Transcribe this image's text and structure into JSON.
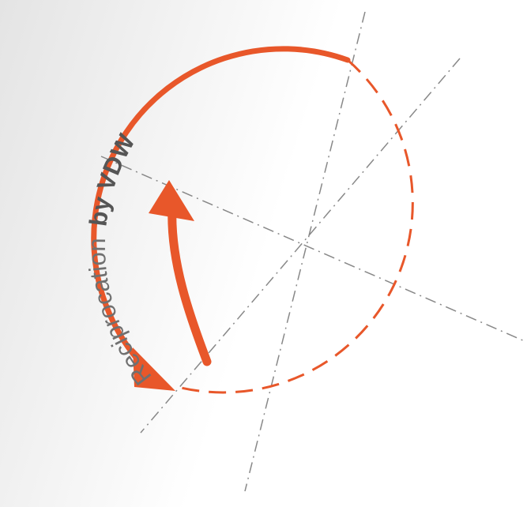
{
  "logo": {
    "text": "Reciprocation",
    "brand": "by VDW"
  }
}
